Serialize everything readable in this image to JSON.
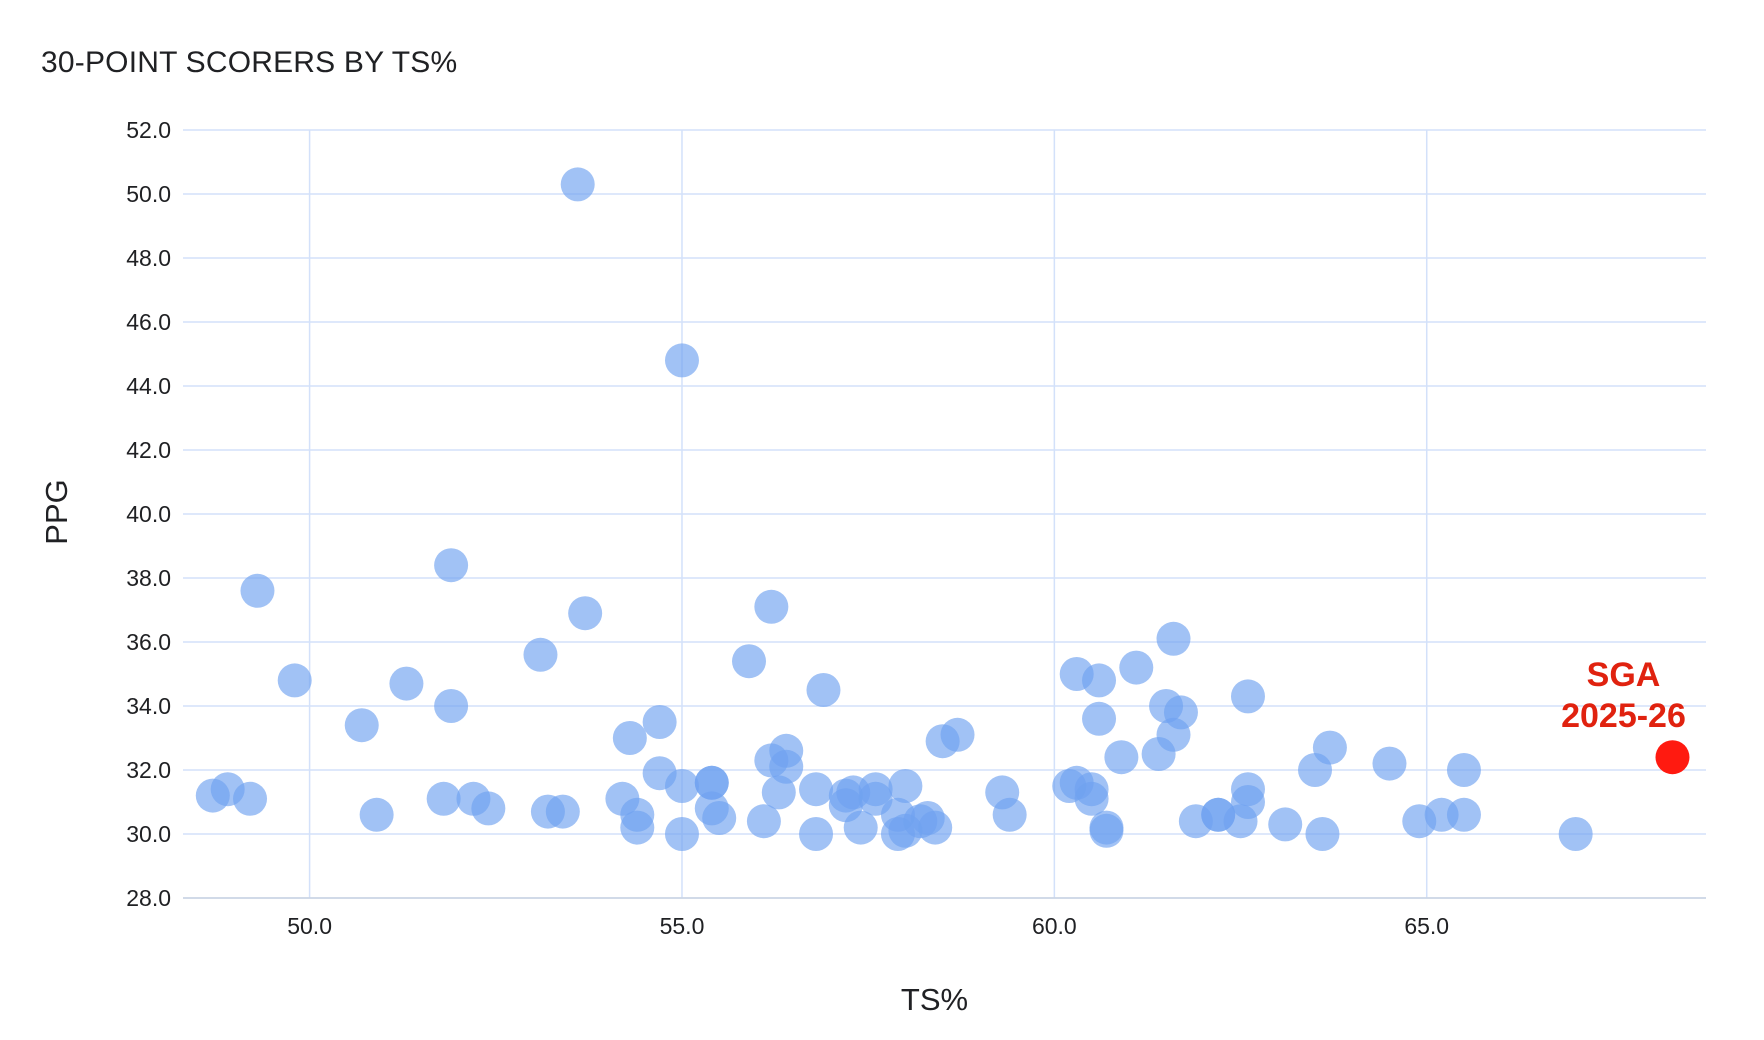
{
  "chart_data": {
    "type": "scatter",
    "title": "30-POINT SCORERS BY TS%",
    "xlabel": "TS%",
    "ylabel": "PPG",
    "xlim": [
      48.3,
      68.75
    ],
    "ylim": [
      28,
      52
    ],
    "x_ticks": [
      "50.0",
      "55.0",
      "60.0",
      "65.0"
    ],
    "y_ticks": [
      "28.0",
      "30.0",
      "32.0",
      "34.0",
      "36.0",
      "38.0",
      "40.0",
      "42.0",
      "44.0",
      "46.0",
      "48.0",
      "50.0",
      "52.0"
    ],
    "grid": true,
    "colors": {
      "points": "#6ea1f0",
      "highlight": "#ff1a10",
      "annotation": "#e0220f",
      "grid": "#d3e1fa"
    },
    "series": [
      {
        "values": [
          [
            53.6,
            50.3
          ],
          [
            55.0,
            44.8
          ],
          [
            51.9,
            38.4
          ],
          [
            49.3,
            37.6
          ],
          [
            53.7,
            36.9
          ],
          [
            56.2,
            37.1
          ],
          [
            61.6,
            36.1
          ],
          [
            53.1,
            35.6
          ],
          [
            55.9,
            35.4
          ],
          [
            61.1,
            35.2
          ],
          [
            60.3,
            35.0
          ],
          [
            60.6,
            34.8
          ],
          [
            49.8,
            34.8
          ],
          [
            51.3,
            34.7
          ],
          [
            56.9,
            34.5
          ],
          [
            62.6,
            34.3
          ],
          [
            51.9,
            34.0
          ],
          [
            61.5,
            34.0
          ],
          [
            61.7,
            33.8
          ],
          [
            54.7,
            33.5
          ],
          [
            60.6,
            33.6
          ],
          [
            50.7,
            33.4
          ],
          [
            58.7,
            33.1
          ],
          [
            61.6,
            33.1
          ],
          [
            54.3,
            33.0
          ],
          [
            58.5,
            32.9
          ],
          [
            56.4,
            32.6
          ],
          [
            63.7,
            32.7
          ],
          [
            61.4,
            32.5
          ],
          [
            60.9,
            32.4
          ],
          [
            56.2,
            32.3
          ],
          [
            64.5,
            32.2
          ],
          [
            56.4,
            32.1
          ],
          [
            63.5,
            32.0
          ],
          [
            65.5,
            32.0
          ],
          [
            54.7,
            31.9
          ],
          [
            55.4,
            31.6
          ],
          [
            55.4,
            31.6
          ],
          [
            58.0,
            31.5
          ],
          [
            60.3,
            31.6
          ],
          [
            60.5,
            31.4
          ],
          [
            55.0,
            31.5
          ],
          [
            60.2,
            31.5
          ],
          [
            62.6,
            31.4
          ],
          [
            57.6,
            31.4
          ],
          [
            57.3,
            31.3
          ],
          [
            56.8,
            31.4
          ],
          [
            59.3,
            31.3
          ],
          [
            48.9,
            31.4
          ],
          [
            56.3,
            31.3
          ],
          [
            57.2,
            31.2
          ],
          [
            48.7,
            31.2
          ],
          [
            49.2,
            31.1
          ],
          [
            51.8,
            31.1
          ],
          [
            52.2,
            31.1
          ],
          [
            54.2,
            31.1
          ],
          [
            57.6,
            31.1
          ],
          [
            60.5,
            31.1
          ],
          [
            62.6,
            31.0
          ],
          [
            57.2,
            30.9
          ],
          [
            52.4,
            30.8
          ],
          [
            55.4,
            30.8
          ],
          [
            53.2,
            30.7
          ],
          [
            53.4,
            30.7
          ],
          [
            50.9,
            30.6
          ],
          [
            65.2,
            30.6
          ],
          [
            54.4,
            30.6
          ],
          [
            59.4,
            30.6
          ],
          [
            65.5,
            30.6
          ],
          [
            62.2,
            30.6
          ],
          [
            62.2,
            30.6
          ],
          [
            55.5,
            30.5
          ],
          [
            57.9,
            30.6
          ],
          [
            58.3,
            30.5
          ],
          [
            61.9,
            30.4
          ],
          [
            64.9,
            30.4
          ],
          [
            56.1,
            30.4
          ],
          [
            62.5,
            30.4
          ],
          [
            58.2,
            30.4
          ],
          [
            63.1,
            30.3
          ],
          [
            54.4,
            30.2
          ],
          [
            57.4,
            30.2
          ],
          [
            58.4,
            30.2
          ],
          [
            58.0,
            30.1
          ],
          [
            60.7,
            30.2
          ],
          [
            60.7,
            30.1
          ],
          [
            63.6,
            30.0
          ],
          [
            67.0,
            30.0
          ],
          [
            55.0,
            30.0
          ],
          [
            56.8,
            30.0
          ],
          [
            57.9,
            30.0
          ]
        ]
      }
    ],
    "highlight": {
      "x": 68.3,
      "y": 32.4,
      "label_line1": "SGA",
      "label_line2": "2025-26"
    }
  }
}
